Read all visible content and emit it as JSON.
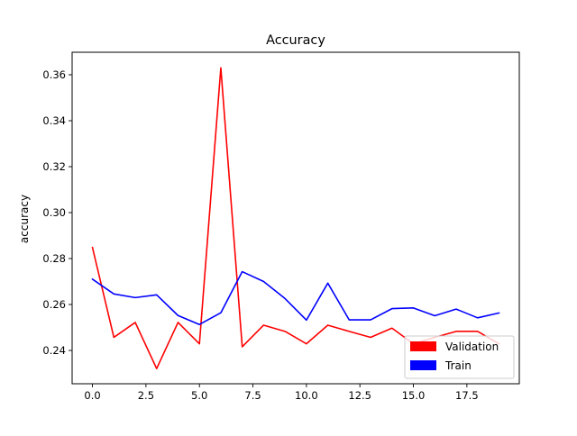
{
  "chart_data": {
    "type": "line",
    "title": "Accuracy",
    "xlabel": "",
    "ylabel": "accuracy",
    "xlim": [
      -0.95,
      19.95
    ],
    "ylim": [
      0.2255,
      0.3698
    ],
    "xticks": [
      0.0,
      2.5,
      5.0,
      7.5,
      10.0,
      12.5,
      15.0,
      17.5
    ],
    "xtick_labels": [
      "0.0",
      "2.5",
      "5.0",
      "7.5",
      "10.0",
      "12.5",
      "15.0",
      "17.5"
    ],
    "yticks": [
      0.24,
      0.26,
      0.28,
      0.3,
      0.32,
      0.34,
      0.36
    ],
    "ytick_labels": [
      "0.24",
      "0.26",
      "0.28",
      "0.30",
      "0.32",
      "0.34",
      "0.36"
    ],
    "grid": false,
    "legend_position": "lower-right",
    "x": [
      0,
      1,
      2,
      3,
      4,
      5,
      6,
      7,
      8,
      9,
      10,
      11,
      12,
      13,
      14,
      15,
      16,
      17,
      18,
      19
    ],
    "series": [
      {
        "name": "Validation",
        "color": "#ff0000",
        "values": [
          0.2848,
          0.2457,
          0.2522,
          0.2321,
          0.2522,
          0.2429,
          0.363,
          0.2416,
          0.251,
          0.2483,
          0.2429,
          0.251,
          0.2483,
          0.2457,
          0.2497,
          0.2429,
          0.2457,
          0.2483,
          0.2483,
          0.2429
        ]
      },
      {
        "name": "Train",
        "color": "#0000ff",
        "values": [
          0.271,
          0.2646,
          0.263,
          0.2642,
          0.2552,
          0.2513,
          0.2564,
          0.2743,
          0.27,
          0.2626,
          0.2532,
          0.2693,
          0.2533,
          0.2533,
          0.2582,
          0.2585,
          0.2551,
          0.258,
          0.2542,
          0.2563
        ]
      }
    ]
  }
}
